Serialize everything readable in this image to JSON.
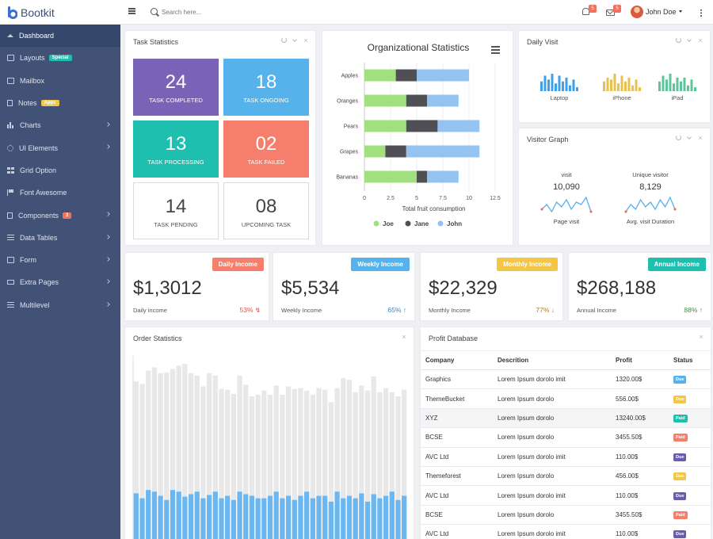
{
  "header": {
    "brand": "Bootkit",
    "search_placeholder": "Search here...",
    "notifications_count": "5",
    "messages_count": "5",
    "user_name": "John Doe"
  },
  "sidebar": {
    "items": [
      {
        "label": "Dashboard",
        "icon": "home-icon",
        "active": true
      },
      {
        "label": "Layouts",
        "icon": "layout-icon",
        "tag": "Special",
        "tag_color": "#1fbfb0"
      },
      {
        "label": "Mailbox",
        "icon": "mail-icon"
      },
      {
        "label": "Notes",
        "icon": "notes-icon",
        "tag": "Apps",
        "tag_color": "#f3c646"
      },
      {
        "label": "Charts",
        "icon": "bar-chart-icon",
        "chevron": true
      },
      {
        "label": "UI Elements",
        "icon": "star-icon",
        "chevron": true
      },
      {
        "label": "Grid Option",
        "icon": "grid-icon"
      },
      {
        "label": "Font Awesome",
        "icon": "flag-icon"
      },
      {
        "label": "Components",
        "icon": "bookmark-icon",
        "tag": "3",
        "tag_color": "#f0715e",
        "chevron": true
      },
      {
        "label": "Data Tables",
        "icon": "table-icon",
        "chevron": true
      },
      {
        "label": "Form",
        "icon": "form-icon",
        "chevron": true
      },
      {
        "label": "Extra Pages",
        "icon": "monitor-icon",
        "chevron": true
      },
      {
        "label": "Multilevel",
        "icon": "list-icon",
        "chevron": true
      }
    ]
  },
  "task_statistics": {
    "title": "Task Statistics",
    "tiles": [
      {
        "value": "24",
        "label": "TASK COMPLETED",
        "color": "#7a63b7"
      },
      {
        "value": "18",
        "label": "TASK ONGOING",
        "color": "#55b2ea"
      },
      {
        "value": "13",
        "label": "TASK PROCESSING",
        "color": "#1fbfb0"
      },
      {
        "value": "02",
        "label": "TASK FAILED",
        "color": "#f57f6c"
      },
      {
        "value": "14",
        "label": "TASK PENDING"
      },
      {
        "value": "08",
        "label": "UPCOMING TASK"
      }
    ]
  },
  "org_stats": {
    "title": "Organizational Statistics",
    "chart_data": {
      "type": "bar",
      "orientation": "horizontal",
      "stacked": true,
      "title": "Organizational Statistics",
      "xlabel": "Total fruit consumption",
      "categories": [
        "Apples",
        "Oranges",
        "Pears",
        "Grapes",
        "Bananas"
      ],
      "xlim": [
        0,
        12.5
      ],
      "xticks": [
        "0",
        "2.5",
        "5",
        "7.5",
        "10",
        "12.5"
      ],
      "series": [
        {
          "name": "Joe",
          "color": "#a2e07f",
          "values": [
            3,
            4,
            4,
            2,
            5
          ]
        },
        {
          "name": "Jane",
          "color": "#4f4f54",
          "values": [
            2,
            2,
            3,
            2,
            1
          ]
        },
        {
          "name": "John",
          "color": "#94c3f0",
          "values": [
            5,
            3,
            4,
            7,
            3
          ]
        }
      ],
      "legend": "bottom"
    }
  },
  "daily_visit": {
    "title": "Daily Visit",
    "chart_data": [
      {
        "type": "bar",
        "label": "Laptop",
        "color": "#3ea0e8",
        "values": [
          5,
          8,
          6,
          9,
          4,
          8,
          5,
          7,
          3,
          6,
          2
        ]
      },
      {
        "type": "bar",
        "label": "iPhone",
        "color": "#e8c14f",
        "values": [
          5,
          7,
          6,
          9,
          4,
          8,
          5,
          7,
          3,
          6,
          2
        ]
      },
      {
        "type": "bar",
        "label": "iPad",
        "color": "#5fc49a",
        "values": [
          5,
          8,
          6,
          9,
          4,
          7,
          5,
          7,
          3,
          6,
          2
        ]
      }
    ]
  },
  "visitor_graph": {
    "title": "Visitor Graph",
    "metrics": [
      {
        "heading": "visit",
        "value": "10,090",
        "caption": "Page visit",
        "color": "#55b2ea",
        "chart_data": {
          "type": "line",
          "values": [
            3,
            5,
            2,
            6,
            4,
            7,
            3,
            6,
            5,
            8,
            2
          ]
        }
      },
      {
        "heading": "Unique visitor",
        "value": "8,129",
        "caption": "Avg. visit Duration",
        "color": "#55b2ea",
        "chart_data": {
          "type": "line",
          "values": [
            2,
            5,
            3,
            7,
            4,
            6,
            3,
            7,
            4,
            8,
            3
          ]
        }
      }
    ]
  },
  "income_cards": [
    {
      "label": "Daily Income",
      "value": "$1,3012",
      "sub": "Daily income",
      "pct": "53%",
      "arrow": "↯",
      "color": "#f57f6c",
      "pct_color": "#d9534f"
    },
    {
      "label": "Weekly Income",
      "value": "$5,534",
      "sub": "Weekly Income",
      "pct": "65%",
      "arrow": "↑",
      "color": "#55b2ea",
      "pct_color": "#3a80c8"
    },
    {
      "label": "Monthly Income",
      "value": "$22,329",
      "sub": "Monthly Income",
      "pct": "77%",
      "arrow": "↓",
      "color": "#f3c646",
      "pct_color": "#a8802a"
    },
    {
      "label": "Annual Income",
      "value": "$268,188",
      "sub": "Annual Income",
      "pct": "88%",
      "arrow": "↑",
      "color": "#1fbfb0",
      "pct_color": "#3d8c3d"
    }
  ],
  "order_stats": {
    "title": "Order Statistics",
    "chart_data": {
      "type": "bar",
      "stacked": true,
      "series": [
        {
          "name": "front",
          "color": "#6cb7ef",
          "values": [
            58,
            52,
            62,
            60,
            55,
            50,
            62,
            60,
            54,
            57,
            60,
            52,
            56,
            60,
            52,
            55,
            50,
            60,
            57,
            55,
            52,
            52,
            55,
            60,
            52,
            55,
            50,
            55,
            60,
            52,
            55,
            55,
            48,
            60,
            52,
            55,
            52,
            58,
            48,
            57,
            52,
            55,
            60,
            50,
            55
          ]
        },
        {
          "name": "back",
          "color": "#e8e8e8",
          "values": [
            135,
            138,
            144,
            150,
            148,
            154,
            146,
            152,
            160,
            146,
            140,
            135,
            147,
            140,
            132,
            128,
            128,
            140,
            132,
            120,
            125,
            130,
            122,
            128,
            125,
            132,
            134,
            130,
            122,
            125,
            130,
            128,
            120,
            125,
            145,
            140,
            128,
            130,
            134,
            142,
            128,
            130,
            120,
            125,
            128
          ]
        }
      ]
    }
  },
  "profit_db": {
    "title": "Profit Database",
    "columns": [
      "Company",
      "Descrition",
      "Profit",
      "Status"
    ],
    "rows": [
      {
        "company": "Graphics",
        "desc": "Lorem Ipsum dorolo imit",
        "profit": "1320.00$",
        "status": "Due",
        "color": "#55b2ea"
      },
      {
        "company": "ThemeBucket",
        "desc": "Lorem Ipsum dorolo",
        "profit": "556.00$",
        "status": "Due",
        "color": "#f3c646"
      },
      {
        "company": "XYZ",
        "desc": "Lorem Ipsum dorolo",
        "profit": "13240.00$",
        "status": "Paid",
        "color": "#1fbfb0"
      },
      {
        "company": "BCSE",
        "desc": "Lorem Ipsum dorolo",
        "profit": "3455.50$",
        "status": "Paid",
        "color": "#f57f6c"
      },
      {
        "company": "AVC Ltd",
        "desc": "Lorem Ipsum dorolo imit",
        "profit": "110.00$",
        "status": "Due",
        "color": "#6a5bb0"
      },
      {
        "company": "Themeforest",
        "desc": "Lorem Ipsum dorolo",
        "profit": "456.00$",
        "status": "Due",
        "color": "#f3c646"
      },
      {
        "company": "AVC Ltd",
        "desc": "Lorem Ipsum dorolo imit",
        "profit": "110.00$",
        "status": "Due",
        "color": "#6a5bb0"
      },
      {
        "company": "BCSE",
        "desc": "Lorem Ipsum dorolo",
        "profit": "3455.50$",
        "status": "Paid",
        "color": "#f57f6c"
      },
      {
        "company": "AVC Ltd",
        "desc": "Lorem Ipsum dorolo imit",
        "profit": "110.00$",
        "status": "Due",
        "color": "#6a5bb0"
      }
    ]
  }
}
